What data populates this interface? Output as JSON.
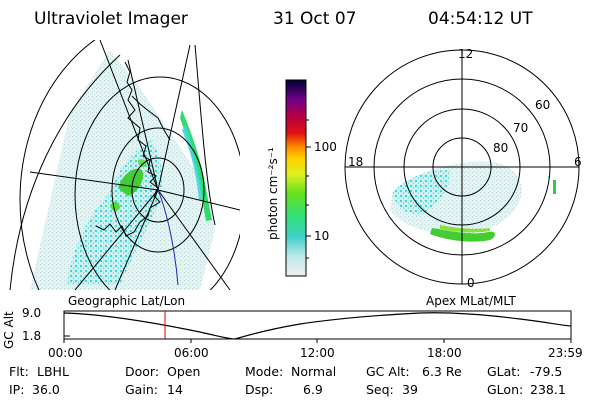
{
  "header": {
    "title": "Ultraviolet Imager",
    "date": "31 Oct 07",
    "time": "04:54:12 UT"
  },
  "colorbar": {
    "axis_label": "photon cm⁻²s⁻¹",
    "ticks": [
      "100",
      "10"
    ]
  },
  "left_map": {
    "label": "Geographic Lat/Lon"
  },
  "right_map": {
    "label": "Apex MLat/MLT",
    "mlt_labels": {
      "top": "12",
      "left": "18",
      "right": "6",
      "bottom": "0"
    },
    "lat_labels": [
      "60",
      "70",
      "80"
    ]
  },
  "altitude_plot": {
    "y_label": "GC Alt",
    "y_ticks": [
      "9.0",
      "1.8"
    ],
    "x_ticks": [
      "00:00",
      "06:00",
      "12:00",
      "18:00",
      "23:59"
    ],
    "current_time_marker": "04:54"
  },
  "footer": {
    "row1": [
      {
        "key": "Flt:",
        "value": "LBHL"
      },
      {
        "key": "Door:",
        "value": "Open"
      },
      {
        "key": "Mode:",
        "value": "Normal"
      },
      {
        "key": "GC Alt:",
        "value": "6.3 Re"
      },
      {
        "key": "GLat:",
        "value": "-79.5"
      }
    ],
    "row2": [
      {
        "key": "IP:",
        "value": "36.0"
      },
      {
        "key": "Gain:",
        "value": "14"
      },
      {
        "key": "Dsp:",
        "value": "6.9"
      },
      {
        "key": "Seq:",
        "value": "39"
      },
      {
        "key": "GLon:",
        "value": "238.1"
      }
    ]
  },
  "colors": {
    "auroral_green": "#33cc33",
    "diffuse_cyan": "#44dddd",
    "marker_red": "#dd0000"
  }
}
